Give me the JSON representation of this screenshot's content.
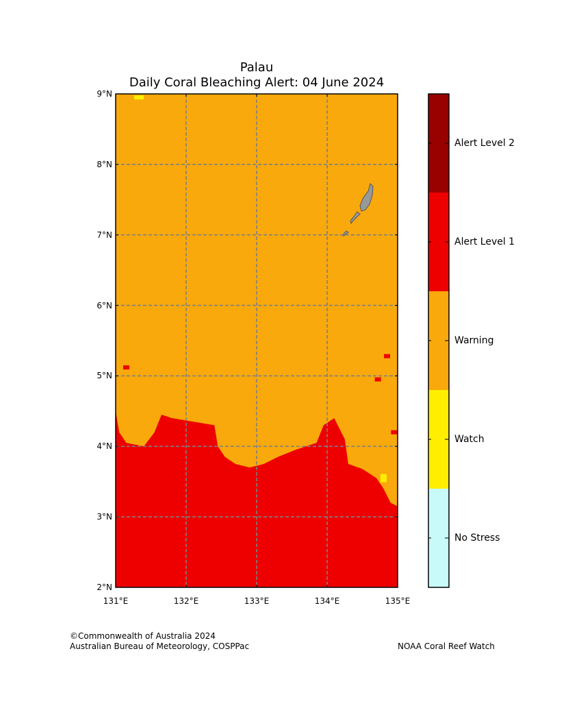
{
  "title": {
    "region": "Palau",
    "subtitle": "Daily Coral Bleaching Alert: 04 June 2024"
  },
  "map": {
    "lon_range": [
      131,
      135
    ],
    "lat_range": [
      2,
      9
    ],
    "lat_ticks": [
      {
        "value": 9,
        "label": "9°N"
      },
      {
        "value": 8,
        "label": "8°N"
      },
      {
        "value": 7,
        "label": "7°N"
      },
      {
        "value": 6,
        "label": "6°N"
      },
      {
        "value": 5,
        "label": "5°N"
      },
      {
        "value": 4,
        "label": "4°N"
      },
      {
        "value": 3,
        "label": "3°N"
      },
      {
        "value": 2,
        "label": "2°N"
      }
    ],
    "lon_ticks": [
      {
        "value": 131,
        "label": "131°E"
      },
      {
        "value": 132,
        "label": "132°E"
      },
      {
        "value": 133,
        "label": "133°E"
      },
      {
        "value": 134,
        "label": "134°E"
      },
      {
        "value": 135,
        "label": "135°E"
      }
    ],
    "background_category": "Warning",
    "alert_level_1_boundary": [
      [
        131.0,
        4.5
      ],
      [
        131.05,
        4.2
      ],
      [
        131.15,
        4.05
      ],
      [
        131.4,
        4.0
      ],
      [
        131.55,
        4.2
      ],
      [
        131.65,
        4.45
      ],
      [
        131.8,
        4.4
      ],
      [
        132.1,
        4.35
      ],
      [
        132.4,
        4.3
      ],
      [
        132.45,
        4.0
      ],
      [
        132.55,
        3.85
      ],
      [
        132.7,
        3.75
      ],
      [
        132.9,
        3.7
      ],
      [
        133.1,
        3.75
      ],
      [
        133.3,
        3.85
      ],
      [
        133.55,
        3.95
      ],
      [
        133.85,
        4.05
      ],
      [
        133.95,
        4.3
      ],
      [
        134.1,
        4.4
      ],
      [
        134.25,
        4.1
      ],
      [
        134.3,
        3.75
      ],
      [
        134.5,
        3.68
      ],
      [
        134.7,
        3.55
      ],
      [
        134.8,
        3.4
      ],
      [
        134.9,
        3.2
      ],
      [
        135.0,
        3.15
      ],
      [
        135.0,
        2.0
      ],
      [
        131.0,
        2.0
      ]
    ],
    "isolated_patches": [
      {
        "category": "Alert Level 1",
        "lon": 131.15,
        "lat": 5.12
      },
      {
        "category": "Alert Level 1",
        "lon": 134.85,
        "lat": 5.28
      },
      {
        "category": "Alert Level 1",
        "lon": 134.72,
        "lat": 4.95
      },
      {
        "category": "Alert Level 1",
        "lon": 134.95,
        "lat": 4.2
      },
      {
        "category": "Watch",
        "lon": 131.33,
        "lat": 8.95
      },
      {
        "category": "Watch",
        "lon": 134.8,
        "lat": 3.55
      }
    ],
    "land": {
      "name": "Palau islands",
      "color": "#999999"
    }
  },
  "colorbar": {
    "categories": [
      {
        "label": "Alert Level 2",
        "color": "#990000"
      },
      {
        "label": "Alert Level 1",
        "color": "#ee0000"
      },
      {
        "label": "Warning",
        "color": "#f9a90c"
      },
      {
        "label": "Watch",
        "color": "#ffee00"
      },
      {
        "label": "No Stress",
        "color": "#c8fafa"
      }
    ]
  },
  "footer": {
    "copyright": "©Commonwealth of Australia 2024",
    "agency": "Australian Bureau of Meteorology, COSPPac",
    "partner": "NOAA Coral Reef Watch"
  },
  "colors": {
    "grid": "#7f7f7f",
    "land_outline": "#555555"
  }
}
